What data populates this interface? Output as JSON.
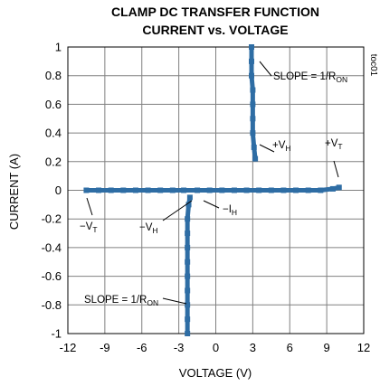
{
  "chart_data": {
    "type": "scatter",
    "title_line1": "CLAMP DC TRANSFER FUNCTION",
    "title_line2": "CURRENT vs. VOLTAGE",
    "xlabel": "VOLTAGE (V)",
    "ylabel": "CURRENT (A)",
    "side_label": "toc01",
    "xlim": [
      -12,
      12
    ],
    "ylim": [
      -1,
      1
    ],
    "xticks": [
      "-12",
      "-9",
      "-6",
      "-3",
      "0",
      "3",
      "6",
      "9",
      "12"
    ],
    "yticks": [
      "1",
      "0.8",
      "0.6",
      "0.4",
      "0.2",
      "0",
      "-0.2",
      "-0.4",
      "-0.6",
      "-0.8",
      "-1"
    ],
    "grid": true,
    "marker_color": "#2e6da4",
    "series": [
      {
        "points": [
          [
            -10.5,
            0.0
          ],
          [
            -9.5,
            0.0
          ],
          [
            -8.5,
            0.0
          ],
          [
            -7.5,
            0.0
          ],
          [
            -6.5,
            0.0
          ],
          [
            -5.5,
            0.0
          ],
          [
            -4.5,
            0.0
          ],
          [
            -3.5,
            0.0
          ],
          [
            -2.6,
            0.0
          ],
          [
            -1.5,
            0.0
          ],
          [
            -0.5,
            0.0
          ],
          [
            0.5,
            0.0
          ],
          [
            1.5,
            0.0
          ],
          [
            2.5,
            0.0
          ],
          [
            3.5,
            0.0
          ],
          [
            4.5,
            0.0
          ],
          [
            5.5,
            0.0
          ],
          [
            6.5,
            0.0
          ],
          [
            7.5,
            0.0
          ],
          [
            8.5,
            0.0
          ],
          [
            9.5,
            0.01
          ],
          [
            10.0,
            0.02
          ],
          [
            -2.1,
            -0.05
          ],
          [
            -2.2,
            -0.1
          ],
          [
            -2.3,
            -0.2
          ],
          [
            -2.3,
            -0.3
          ],
          [
            -2.3,
            -0.4
          ],
          [
            -2.3,
            -0.5
          ],
          [
            -2.3,
            -0.6
          ],
          [
            -2.3,
            -0.7
          ],
          [
            -2.3,
            -0.8
          ],
          [
            -2.3,
            -0.9
          ],
          [
            -2.3,
            -1.0
          ],
          [
            2.9,
            1.0
          ],
          [
            2.9,
            0.9
          ],
          [
            2.9,
            0.8
          ],
          [
            3.0,
            0.7
          ],
          [
            3.0,
            0.6
          ],
          [
            3.0,
            0.5
          ],
          [
            3.0,
            0.4
          ],
          [
            3.1,
            0.3
          ],
          [
            3.2,
            0.22
          ]
        ]
      }
    ],
    "annotations": [
      {
        "main": "SLOPE = 1/R",
        "sub": "ON"
      },
      {
        "main": "+V",
        "sub": "H"
      },
      {
        "main": "+V",
        "sub": "T"
      },
      {
        "main": "−V",
        "sub": "T"
      },
      {
        "main": "−V",
        "sub": "H"
      },
      {
        "main": "−I",
        "sub": "H"
      },
      {
        "main": "SLOPE = 1/R",
        "sub": "ON"
      }
    ]
  }
}
